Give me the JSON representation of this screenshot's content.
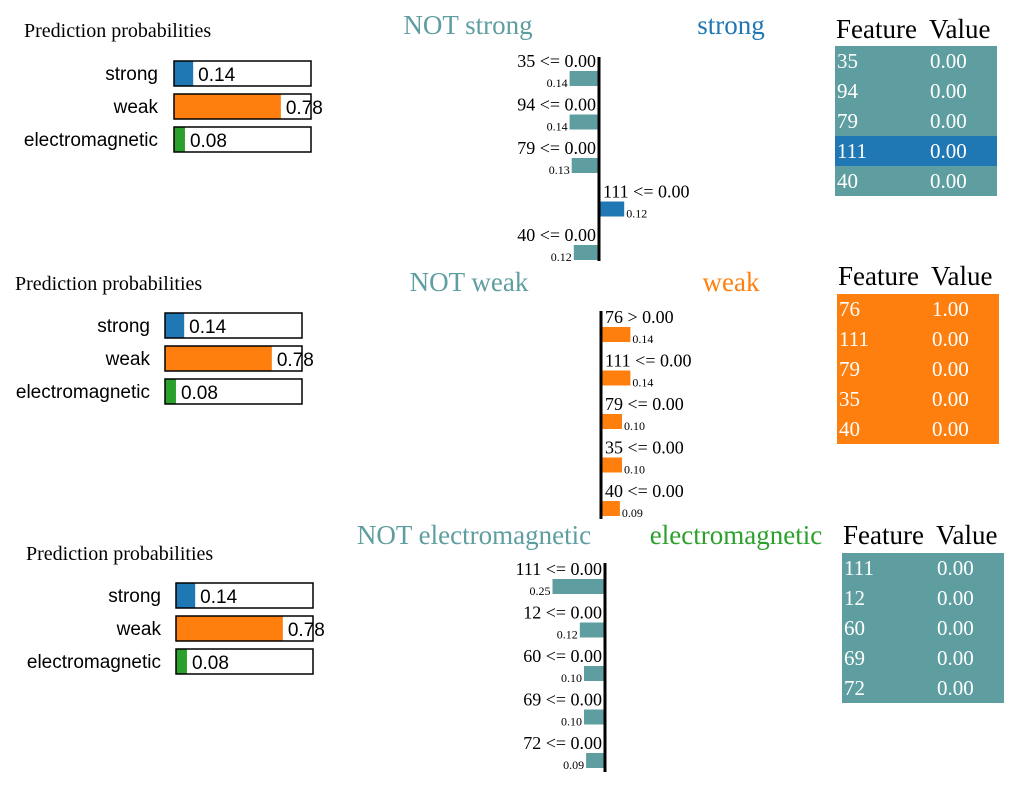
{
  "colors": {
    "strong": "#1f77b4",
    "weak": "#ff7f0e",
    "electromagnetic": "#2ca02c",
    "not": "#5f9ea0",
    "axis": "#000000"
  },
  "classes": [
    "strong",
    "weak",
    "electromagnetic"
  ],
  "chart_data": [
    {
      "title": "Prediction probabilities",
      "type": "bar",
      "categories": [
        "strong",
        "weak",
        "electromagnetic"
      ],
      "values": [
        0.14,
        0.78,
        0.08
      ],
      "labels": [
        "0.14",
        "0.78",
        "0.08"
      ]
    },
    {
      "type": "bar",
      "orientation": "horizontal",
      "target_class": "strong",
      "left_label": "NOT strong",
      "right_label": "strong",
      "features": [
        {
          "label": "35 <= 0.00",
          "weight": -0.14,
          "weight_label": "0.14"
        },
        {
          "label": "94 <= 0.00",
          "weight": -0.14,
          "weight_label": "0.14"
        },
        {
          "label": "79 <= 0.00",
          "weight": -0.13,
          "weight_label": "0.13"
        },
        {
          "label": "111 <= 0.00",
          "weight": 0.12,
          "weight_label": "0.12"
        },
        {
          "label": "40 <= 0.00",
          "weight": -0.12,
          "weight_label": "0.12"
        }
      ]
    },
    {
      "type": "table",
      "headers": [
        "Feature",
        "Value"
      ],
      "rows": [
        {
          "feature": "35",
          "value": "0.00",
          "positive": false
        },
        {
          "feature": "94",
          "value": "0.00",
          "positive": false
        },
        {
          "feature": "79",
          "value": "0.00",
          "positive": false
        },
        {
          "feature": "111",
          "value": "0.00",
          "positive": true
        },
        {
          "feature": "40",
          "value": "0.00",
          "positive": false
        }
      ]
    },
    {
      "title": "Prediction probabilities",
      "type": "bar",
      "categories": [
        "strong",
        "weak",
        "electromagnetic"
      ],
      "values": [
        0.14,
        0.78,
        0.08
      ],
      "labels": [
        "0.14",
        "0.78",
        "0.08"
      ]
    },
    {
      "type": "bar",
      "orientation": "horizontal",
      "target_class": "weak",
      "left_label": "NOT weak",
      "right_label": "weak",
      "features": [
        {
          "label": "76 > 0.00",
          "weight": 0.14,
          "weight_label": "0.14"
        },
        {
          "label": "111 <= 0.00",
          "weight": 0.14,
          "weight_label": "0.14"
        },
        {
          "label": "79 <= 0.00",
          "weight": 0.1,
          "weight_label": "0.10"
        },
        {
          "label": "35 <= 0.00",
          "weight": 0.1,
          "weight_label": "0.10"
        },
        {
          "label": "40 <= 0.00",
          "weight": 0.09,
          "weight_label": "0.09"
        }
      ]
    },
    {
      "type": "table",
      "headers": [
        "Feature",
        "Value"
      ],
      "rows": [
        {
          "feature": "76",
          "value": "1.00",
          "positive": true
        },
        {
          "feature": "111",
          "value": "0.00",
          "positive": true
        },
        {
          "feature": "79",
          "value": "0.00",
          "positive": true
        },
        {
          "feature": "35",
          "value": "0.00",
          "positive": true
        },
        {
          "feature": "40",
          "value": "0.00",
          "positive": true
        }
      ]
    },
    {
      "title": "Prediction probabilities",
      "type": "bar",
      "categories": [
        "strong",
        "weak",
        "electromagnetic"
      ],
      "values": [
        0.14,
        0.78,
        0.08
      ],
      "labels": [
        "0.14",
        "0.78",
        "0.08"
      ]
    },
    {
      "type": "bar",
      "orientation": "horizontal",
      "target_class": "electromagnetic",
      "left_label": "NOT electromagnetic",
      "right_label": "electromagnetic",
      "features": [
        {
          "label": "111 <= 0.00",
          "weight": -0.25,
          "weight_label": "0.25"
        },
        {
          "label": "12 <= 0.00",
          "weight": -0.12,
          "weight_label": "0.12"
        },
        {
          "label": "60 <= 0.00",
          "weight": -0.1,
          "weight_label": "0.10"
        },
        {
          "label": "69 <= 0.00",
          "weight": -0.1,
          "weight_label": "0.10"
        },
        {
          "label": "72 <= 0.00",
          "weight": -0.09,
          "weight_label": "0.09"
        }
      ]
    },
    {
      "type": "table",
      "headers": [
        "Feature",
        "Value"
      ],
      "rows": [
        {
          "feature": "111",
          "value": "0.00",
          "positive": false
        },
        {
          "feature": "12",
          "value": "0.00",
          "positive": false
        },
        {
          "feature": "60",
          "value": "0.00",
          "positive": false
        },
        {
          "feature": "69",
          "value": "0.00",
          "positive": false
        },
        {
          "feature": "72",
          "value": "0.00",
          "positive": false
        }
      ]
    }
  ]
}
